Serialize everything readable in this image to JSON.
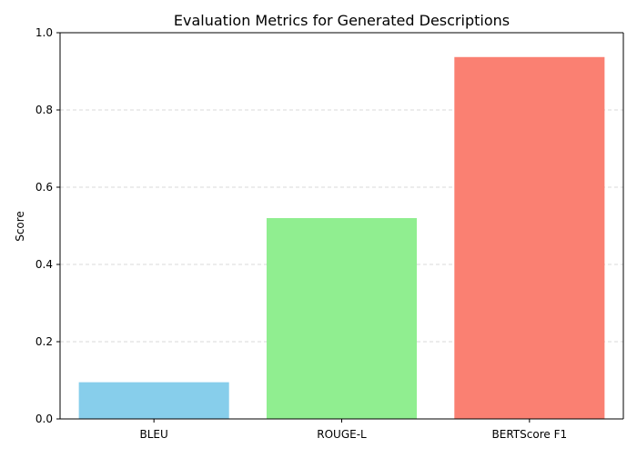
{
  "chart_data": {
    "type": "bar",
    "title": "Evaluation Metrics for Generated Descriptions",
    "xlabel": "",
    "ylabel": "Score",
    "categories": [
      "BLEU",
      "ROUGE-L",
      "BERTScore F1"
    ],
    "values": [
      0.095,
      0.52,
      0.937
    ],
    "colors": [
      "#87ceeb",
      "#90ee90",
      "#fa8072"
    ],
    "ylim": [
      0,
      1.0
    ],
    "yticks": [
      "0.0",
      "0.2",
      "0.4",
      "0.6",
      "0.8",
      "1.0"
    ],
    "grid": "y-axis dashed",
    "legend": "none"
  }
}
